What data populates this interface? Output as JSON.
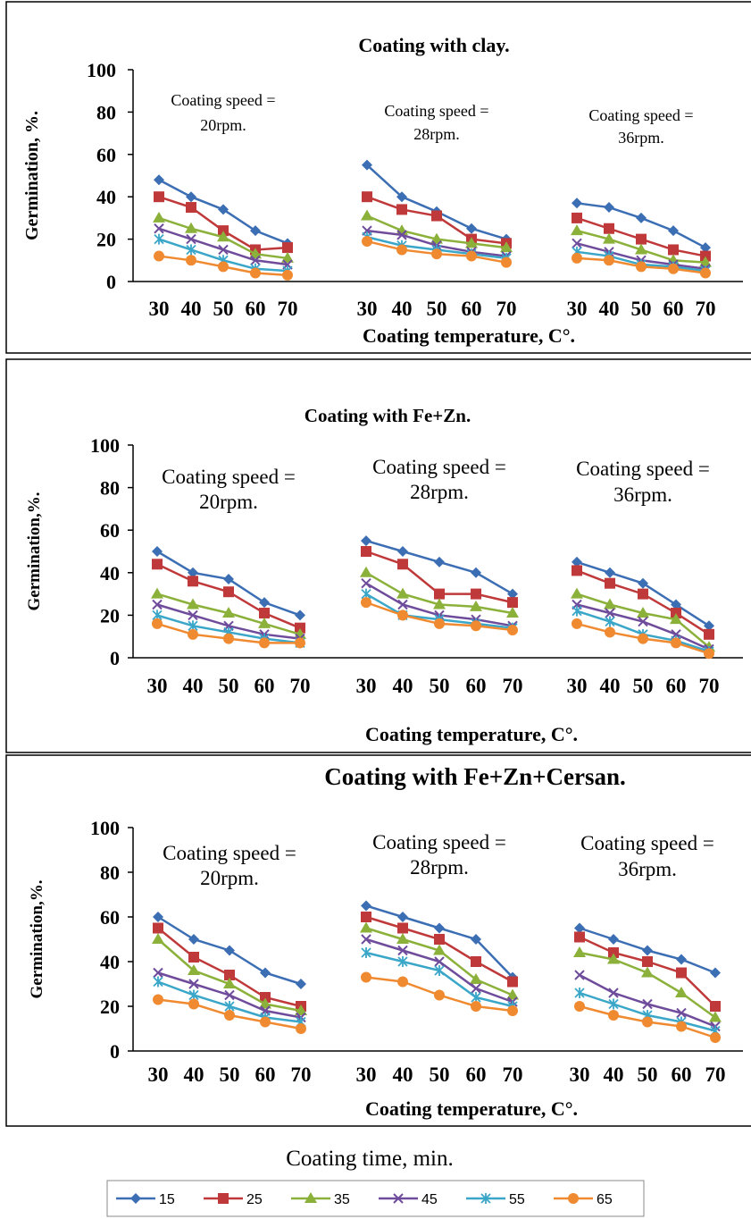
{
  "footer": {
    "time_label": "Coating time, min."
  },
  "legend": {
    "entries": [
      {
        "label": "15",
        "color": "#3c6eb4",
        "marker": "diamond"
      },
      {
        "label": "25",
        "color": "#c0393a",
        "marker": "square"
      },
      {
        "label": "35",
        "color": "#8bb13b",
        "marker": "triangle"
      },
      {
        "label": "45",
        "color": "#6f4c9b",
        "marker": "x"
      },
      {
        "label": "55",
        "color": "#3aa6c8",
        "marker": "star"
      },
      {
        "label": "65",
        "color": "#f08a31",
        "marker": "circle"
      }
    ]
  },
  "chart_data": [
    {
      "type": "line",
      "title": "Coating with clay.",
      "ylabel": "Germination, %.",
      "xlabel": "Coating temperature, C°.",
      "ylim": [
        0,
        100
      ],
      "yticks": [
        "0",
        "20",
        "40",
        "60",
        "80",
        "100"
      ],
      "groups": [
        {
          "label": [
            "Coating speed =",
            "20rpm."
          ],
          "x": [
            "30",
            "40",
            "50",
            "60",
            "70"
          ],
          "series": [
            {
              "name": "15",
              "values": [
                48,
                40,
                34,
                24,
                18
              ]
            },
            {
              "name": "25",
              "values": [
                40,
                35,
                24,
                15,
                16
              ]
            },
            {
              "name": "35",
              "values": [
                30,
                25,
                21,
                13,
                11
              ]
            },
            {
              "name": "45",
              "values": [
                25,
                20,
                15,
                10,
                8
              ]
            },
            {
              "name": "55",
              "values": [
                20,
                15,
                10,
                6,
                5
              ]
            },
            {
              "name": "65",
              "values": [
                12,
                10,
                7,
                4,
                3
              ]
            }
          ]
        },
        {
          "label": [
            "Coating speed =",
            "28rpm."
          ],
          "x": [
            "30",
            "40",
            "50",
            "60",
            "70"
          ],
          "series": [
            {
              "name": "15",
              "values": [
                55,
                40,
                33,
                25,
                20
              ]
            },
            {
              "name": "25",
              "values": [
                40,
                34,
                31,
                20,
                18
              ]
            },
            {
              "name": "35",
              "values": [
                31,
                24,
                20,
                18,
                16
              ]
            },
            {
              "name": "45",
              "values": [
                24,
                22,
                17,
                14,
                12
              ]
            },
            {
              "name": "55",
              "values": [
                21,
                17,
                15,
                13,
                11
              ]
            },
            {
              "name": "65",
              "values": [
                19,
                15,
                13,
                12,
                9
              ]
            }
          ]
        },
        {
          "label": [
            "Coating speed =",
            "36rpm."
          ],
          "x": [
            "30",
            "40",
            "50",
            "60",
            "70"
          ],
          "series": [
            {
              "name": "15",
              "values": [
                37,
                35,
                30,
                24,
                16
              ]
            },
            {
              "name": "25",
              "values": [
                30,
                25,
                20,
                15,
                12
              ]
            },
            {
              "name": "35",
              "values": [
                24,
                20,
                15,
                10,
                9
              ]
            },
            {
              "name": "45",
              "values": [
                18,
                14,
                10,
                8,
                6
              ]
            },
            {
              "name": "55",
              "values": [
                14,
                12,
                8,
                7,
                5
              ]
            },
            {
              "name": "65",
              "values": [
                11,
                10,
                7,
                6,
                4
              ]
            }
          ]
        }
      ]
    },
    {
      "type": "line",
      "title": "Coating with Fe+Zn.",
      "ylabel": "Germination,%.",
      "xlabel": "Coating temperature, C°.",
      "ylim": [
        0,
        100
      ],
      "yticks": [
        "0",
        "20",
        "40",
        "60",
        "80",
        "100"
      ],
      "groups": [
        {
          "label": [
            "Coating speed =",
            "20rpm."
          ],
          "x": [
            "30",
            "40",
            "50",
            "60",
            "70"
          ],
          "series": [
            {
              "name": "15",
              "values": [
                50,
                40,
                37,
                26,
                20
              ]
            },
            {
              "name": "25",
              "values": [
                44,
                36,
                31,
                21,
                14
              ]
            },
            {
              "name": "35",
              "values": [
                30,
                25,
                21,
                16,
                11
              ]
            },
            {
              "name": "45",
              "values": [
                25,
                20,
                15,
                11,
                9
              ]
            },
            {
              "name": "55",
              "values": [
                20,
                15,
                12,
                9,
                7
              ]
            },
            {
              "name": "65",
              "values": [
                16,
                11,
                9,
                7,
                7
              ]
            }
          ]
        },
        {
          "label": [
            "Coating speed =",
            "28rpm."
          ],
          "x": [
            "30",
            "40",
            "50",
            "60",
            "70"
          ],
          "series": [
            {
              "name": "15",
              "values": [
                55,
                50,
                45,
                40,
                30
              ]
            },
            {
              "name": "25",
              "values": [
                50,
                44,
                30,
                30,
                26
              ]
            },
            {
              "name": "35",
              "values": [
                40,
                30,
                25,
                24,
                21
              ]
            },
            {
              "name": "45",
              "values": [
                35,
                25,
                20,
                18,
                15
              ]
            },
            {
              "name": "55",
              "values": [
                30,
                20,
                18,
                16,
                14
              ]
            },
            {
              "name": "65",
              "values": [
                26,
                20,
                16,
                15,
                13
              ]
            }
          ]
        },
        {
          "label": [
            "Coating speed =",
            "36rpm."
          ],
          "x": [
            "30",
            "40",
            "50",
            "60",
            "70"
          ],
          "series": [
            {
              "name": "15",
              "values": [
                45,
                40,
                35,
                25,
                15
              ]
            },
            {
              "name": "25",
              "values": [
                41,
                35,
                30,
                21,
                11
              ]
            },
            {
              "name": "35",
              "values": [
                30,
                25,
                21,
                18,
                5
              ]
            },
            {
              "name": "45",
              "values": [
                25,
                21,
                17,
                11,
                4
              ]
            },
            {
              "name": "55",
              "values": [
                22,
                17,
                11,
                8,
                3
              ]
            },
            {
              "name": "65",
              "values": [
                16,
                12,
                9,
                7,
                2
              ]
            }
          ]
        }
      ]
    },
    {
      "type": "line",
      "title": "Coating with Fe+Zn+Cersan.",
      "ylabel": "Germination,%.",
      "xlabel": "Coating temperature, C°.",
      "ylim": [
        0,
        100
      ],
      "yticks": [
        "0",
        "20",
        "40",
        "60",
        "80",
        "100"
      ],
      "groups": [
        {
          "label": [
            "Coating speed =",
            "20rpm."
          ],
          "x": [
            "30",
            "40",
            "50",
            "60",
            "70"
          ],
          "series": [
            {
              "name": "15",
              "values": [
                60,
                50,
                45,
                35,
                30
              ]
            },
            {
              "name": "25",
              "values": [
                55,
                42,
                34,
                24,
                20
              ]
            },
            {
              "name": "35",
              "values": [
                50,
                36,
                30,
                21,
                18
              ]
            },
            {
              "name": "45",
              "values": [
                35,
                30,
                25,
                18,
                15
              ]
            },
            {
              "name": "55",
              "values": [
                31,
                25,
                20,
                15,
                13
              ]
            },
            {
              "name": "65",
              "values": [
                23,
                21,
                16,
                13,
                10
              ]
            }
          ]
        },
        {
          "label": [
            "Coating speed =",
            "28rpm."
          ],
          "x": [
            "30",
            "40",
            "50",
            "60",
            "70"
          ],
          "series": [
            {
              "name": "15",
              "values": [
                65,
                60,
                55,
                50,
                33
              ]
            },
            {
              "name": "25",
              "values": [
                60,
                55,
                50,
                40,
                31
              ]
            },
            {
              "name": "35",
              "values": [
                55,
                50,
                45,
                32,
                25
              ]
            },
            {
              "name": "45",
              "values": [
                50,
                45,
                40,
                28,
                22
              ]
            },
            {
              "name": "55",
              "values": [
                44,
                40,
                36,
                24,
                20
              ]
            },
            {
              "name": "65",
              "values": [
                33,
                31,
                25,
                20,
                18
              ]
            }
          ]
        },
        {
          "label": [
            "Coating speed =",
            "36rpm."
          ],
          "x": [
            "30",
            "40",
            "50",
            "60",
            "70"
          ],
          "series": [
            {
              "name": "15",
              "values": [
                55,
                50,
                45,
                41,
                35
              ]
            },
            {
              "name": "25",
              "values": [
                51,
                44,
                40,
                35,
                20
              ]
            },
            {
              "name": "35",
              "values": [
                44,
                41,
                35,
                26,
                15
              ]
            },
            {
              "name": "45",
              "values": [
                34,
                26,
                21,
                17,
                11
              ]
            },
            {
              "name": "55",
              "values": [
                26,
                21,
                16,
                13,
                9
              ]
            },
            {
              "name": "65",
              "values": [
                20,
                16,
                13,
                11,
                6
              ]
            }
          ]
        }
      ]
    }
  ]
}
